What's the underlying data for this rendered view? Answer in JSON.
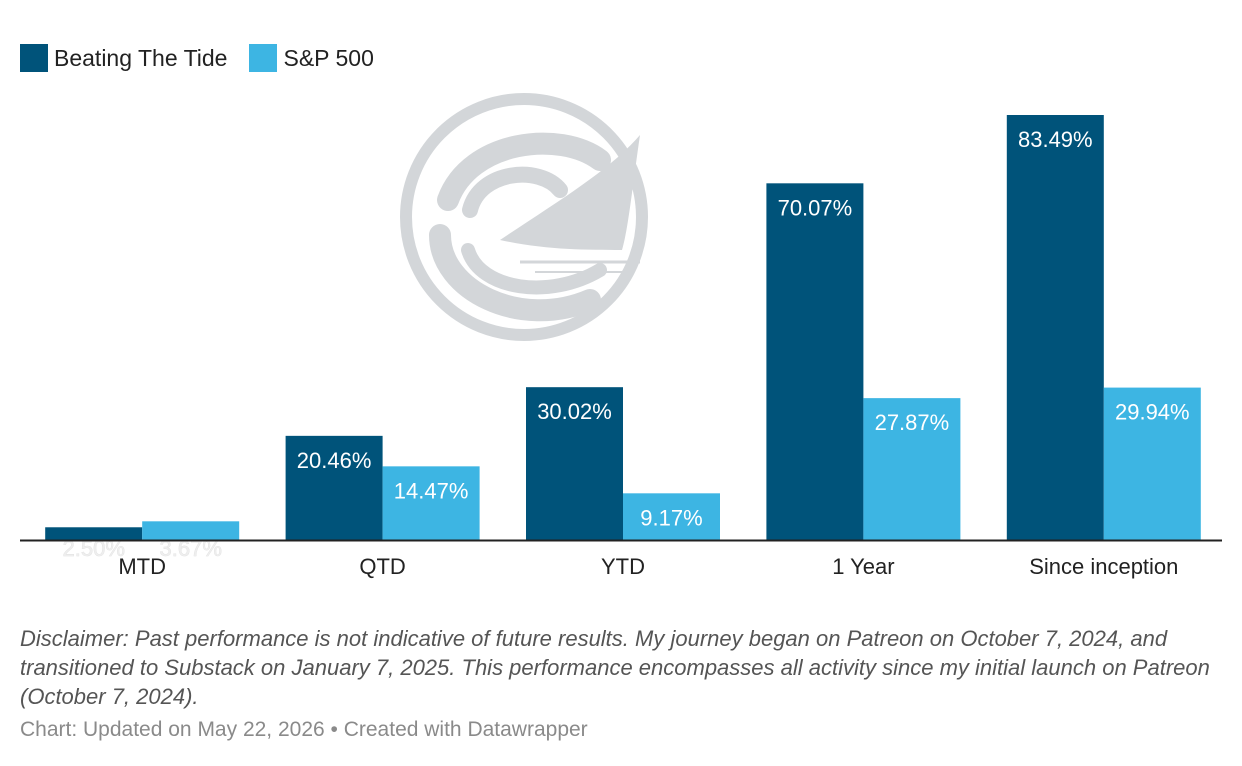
{
  "chart_data": {
    "type": "bar",
    "title": "",
    "xlabel": "",
    "ylabel": "",
    "categories": [
      "MTD",
      "QTD",
      "YTD",
      "1 Year",
      "Since inception"
    ],
    "series": [
      {
        "name": "Beating The Tide",
        "values": [
          2.5,
          20.46,
          30.02,
          70.07,
          83.49
        ],
        "labels": [
          "2.50%",
          "20.46%",
          "30.02%",
          "70.07%",
          "83.49%"
        ]
      },
      {
        "name": "S&P 500",
        "values": [
          3.67,
          14.47,
          9.17,
          27.87,
          29.94
        ],
        "labels": [
          "3.67%",
          "14.47%",
          "9.17%",
          "27.87%",
          "29.94%"
        ]
      }
    ],
    "ylim": [
      0,
      83.49
    ],
    "grid": false,
    "legend": "top-left",
    "colors": {
      "Beating The Tide": "#00537a",
      "S&P 500": "#3db5e3"
    }
  },
  "notes": "Disclaimer: Past performance is not indicative of future results. My journey began on Patreon on October 7, 2024, and transitioned to Substack on January 7, 2025. This performance encompasses all activity since my initial launch on Patreon (October 7, 2024).",
  "byline": "Chart: Updated on May 22, 2026 • Created with Datawrapper",
  "watermark": {
    "icon": "sail-wave-logo-icon",
    "color": "#d3d6d9"
  }
}
